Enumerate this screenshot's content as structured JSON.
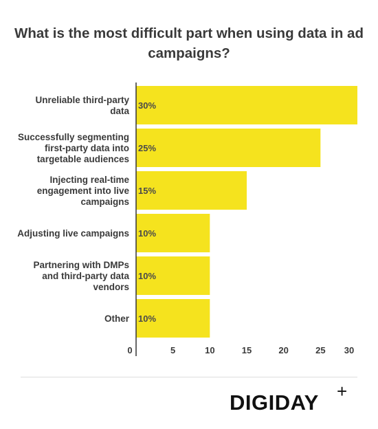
{
  "title": "What is the most difficult part when using data in ad campaigns?",
  "logo": {
    "text": "DIGIDAY",
    "plus": "+"
  },
  "chart_data": {
    "type": "bar",
    "orientation": "horizontal",
    "categories": [
      [
        "Unreliable third-party",
        "data"
      ],
      [
        "Successfully segmenting",
        "first-party data into",
        "targetable audiences"
      ],
      [
        "Injecting real-time",
        "engagement into live",
        "campaigns"
      ],
      [
        "Adjusting live campaigns"
      ],
      [
        "Partnering with DMPs",
        "and third-party data",
        "vendors"
      ],
      [
        "Other"
      ]
    ],
    "values": [
      30,
      25,
      15,
      10,
      10,
      10
    ],
    "value_labels": [
      "30%",
      "25%",
      "15%",
      "10%",
      "10%",
      "10%"
    ],
    "x_ticks": [
      0,
      5,
      10,
      15,
      20,
      25,
      30
    ],
    "xlim": [
      0,
      30
    ],
    "grid": false,
    "bar_color": "#f5e31e",
    "axis_color": "#333333"
  }
}
